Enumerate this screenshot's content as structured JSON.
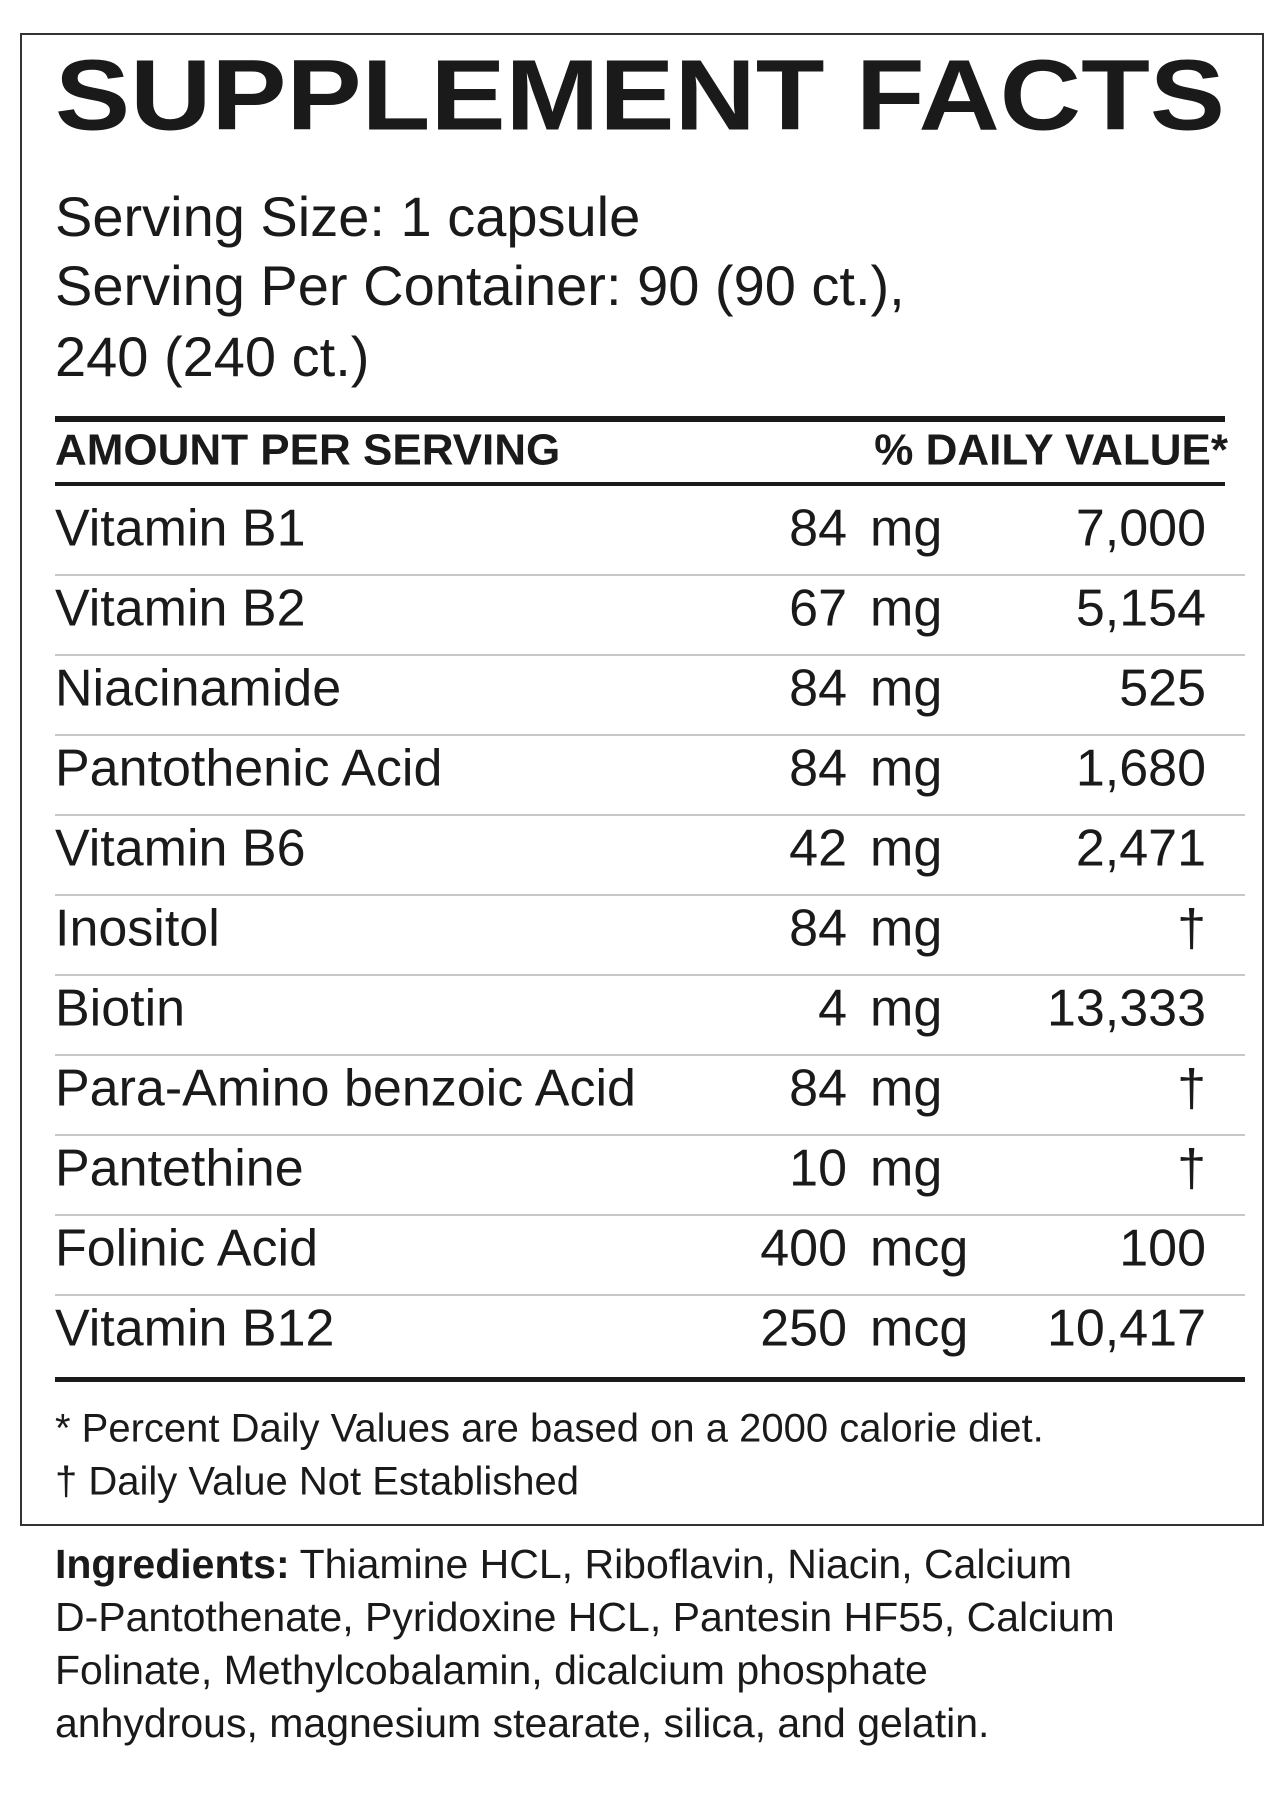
{
  "title": "SUPPLEMENT FACTS",
  "serving": [
    "Serving Size: 1 capsule",
    "Serving Per Container: 90 (90 ct.),",
    "240 (240 ct.)"
  ],
  "header": {
    "amount": "AMOUNT PER SERVING",
    "daily_value": "% DAILY VALUE*"
  },
  "table": {
    "rows": [
      [
        "Vitamin B1",
        "84",
        "mg",
        "7,000"
      ],
      [
        "Vitamin B2",
        "67",
        "mg",
        "5,154"
      ],
      [
        "Niacinamide",
        "84",
        "mg",
        "525"
      ],
      [
        "Pantothenic Acid",
        "84",
        "mg",
        "1,680"
      ],
      [
        "Vitamin B6",
        "42",
        "mg",
        "2,471"
      ],
      [
        "Inositol",
        "84",
        "mg",
        "†"
      ],
      [
        "Biotin",
        "4",
        "mg",
        "13,333"
      ],
      [
        "Para-Amino benzoic Acid",
        "84",
        "mg",
        "†"
      ],
      [
        "Pantethine",
        "10",
        "mg",
        "†"
      ],
      [
        "Folinic Acid",
        "400",
        "mcg",
        "100"
      ],
      [
        "Vitamin B12",
        "250",
        "mcg",
        "10,417"
      ]
    ]
  },
  "footnotes": [
    "* Percent Daily Values are based on a 2000 calorie diet.",
    "† Daily Value Not Established"
  ],
  "ingredients": {
    "label": "Ingredients:",
    "lines": [
      "Thiamine HCL, Riboflavin, Niacin, Calcium",
      "D-Pantothenate, Pyridoxine HCL, Pantesin HF55, Calcium",
      "Folinate, Methylcobalamin, dicalcium phosphate",
      "anhydrous, magnesium stearate, silica, and gelatin."
    ]
  }
}
